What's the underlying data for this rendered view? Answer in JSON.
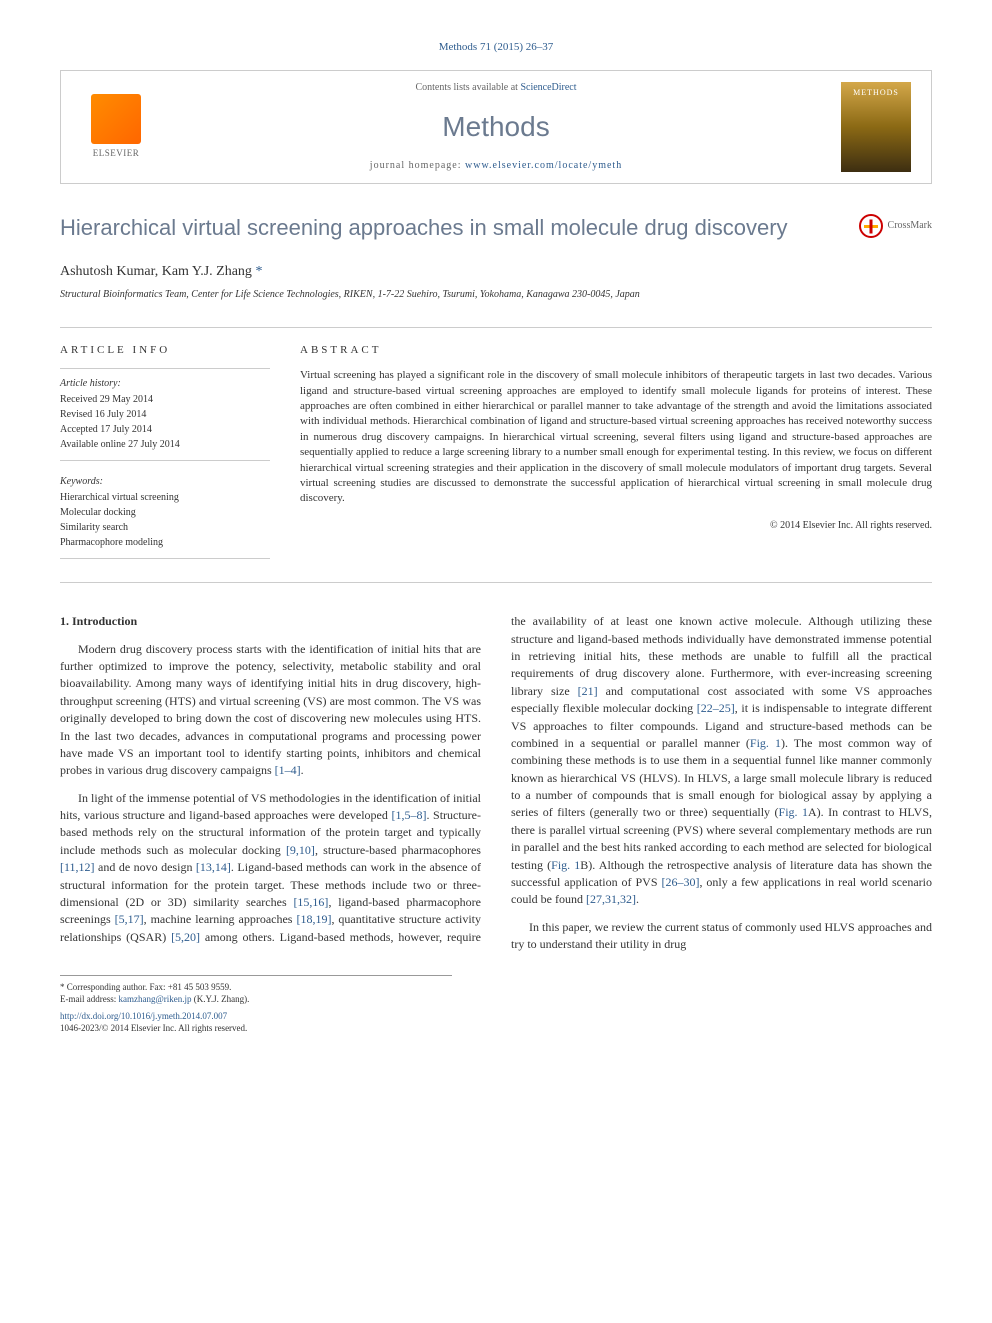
{
  "citation": "Methods 71 (2015) 26–37",
  "header": {
    "contents_prefix": "Contents lists available at ",
    "contents_link": "ScienceDirect",
    "journal": "Methods",
    "homepage_prefix": "journal homepage: ",
    "homepage_url": "www.elsevier.com/locate/ymeth",
    "publisher": "ELSEVIER",
    "cover_label": "METHODS"
  },
  "title": "Hierarchical virtual screening approaches in small molecule drug discovery",
  "crossmark": "CrossMark",
  "authors": "Ashutosh Kumar, Kam Y.J. Zhang",
  "author_mark": "*",
  "affiliation": "Structural Bioinformatics Team, Center for Life Science Technologies, RIKEN, 1-7-22 Suehiro, Tsurumi, Yokohama, Kanagawa 230-0045, Japan",
  "info": {
    "heading": "ARTICLE INFO",
    "history_label": "Article history:",
    "received": "Received 29 May 2014",
    "revised": "Revised 16 July 2014",
    "accepted": "Accepted 17 July 2014",
    "online": "Available online 27 July 2014",
    "keywords_label": "Keywords:",
    "keywords": [
      "Hierarchical virtual screening",
      "Molecular docking",
      "Similarity search",
      "Pharmacophore modeling"
    ]
  },
  "abstract": {
    "heading": "ABSTRACT",
    "text": "Virtual screening has played a significant role in the discovery of small molecule inhibitors of therapeutic targets in last two decades. Various ligand and structure-based virtual screening approaches are employed to identify small molecule ligands for proteins of interest. These approaches are often combined in either hierarchical or parallel manner to take advantage of the strength and avoid the limitations associated with individual methods. Hierarchical combination of ligand and structure-based virtual screening approaches has received noteworthy success in numerous drug discovery campaigns. In hierarchical virtual screening, several filters using ligand and structure-based approaches are sequentially applied to reduce a large screening library to a number small enough for experimental testing. In this review, we focus on different hierarchical virtual screening strategies and their application in the discovery of small molecule modulators of important drug targets. Several virtual screening studies are discussed to demonstrate the successful application of hierarchical virtual screening in small molecule drug discovery.",
    "copyright": "© 2014 Elsevier Inc. All rights reserved."
  },
  "section": {
    "heading": "1. Introduction",
    "p1": "Modern drug discovery process starts with the identification of initial hits that are further optimized to improve the potency, selectivity, metabolic stability and oral bioavailability. Among many ways of identifying initial hits in drug discovery, high-throughput screening (HTS) and virtual screening (VS) are most common. The VS was originally developed to bring down the cost of discovering new molecules using HTS. In the last two decades, advances in computational programs and processing power have made VS an important tool to identify starting points, inhibitors and chemical probes in various drug discovery campaigns ",
    "p1_ref": "[1–4]",
    "p1_end": ".",
    "p2a": "In light of the immense potential of VS methodologies in the identification of initial hits, various structure and ligand-based approaches were developed ",
    "p2_ref1": "[1,5–8]",
    "p2b": ". Structure-based methods rely on the structural information of the protein target and typically include methods such as molecular docking ",
    "p2_ref2": "[9,10]",
    "p2c": ", structure-based pharmacophores ",
    "p2_ref3": "[11,12]",
    "p2d": " and de novo design ",
    "p2_ref4": "[13,14]",
    "p2e": ". Ligand-based methods can work in the absence of structural information for the protein target. These methods include two or three-dimensional (2D or 3D) similarity searches ",
    "p2_ref5": "[15,16]",
    "p2f": ", ligand-based pharmacophore screenings ",
    "p2_ref6": "[5,17]",
    "p2g": ", machine learning approaches ",
    "p2_ref7": "[18,19]",
    "p2h": ", quantitative structure activity relationships (QSAR) ",
    "p2_ref8": "[5,20]",
    "p2i": " among others. Ligand-based methods, however, require the availability of at least one known active molecule. Although utilizing these structure and ligand-based methods individually have demonstrated immense potential in retrieving initial hits, these methods are unable to fulfill all the practical requirements of drug discovery alone. Furthermore, with ever-increasing screening library size ",
    "p2_ref9": "[21]",
    "p2j": " and computational cost associated with some VS approaches especially flexible molecular docking ",
    "p2_ref10": "[22–25]",
    "p2k": ", it is indispensable to integrate different VS approaches to filter compounds. Ligand and structure-based methods can be combined in a sequential or parallel manner (",
    "p2_fig1": "Fig. 1",
    "p2l": "). The most common way of combining these methods is to use them in a sequential funnel like manner commonly known as hierarchical VS (HLVS). In HLVS, a large small molecule library is reduced to a number of compounds that is small enough for biological assay by applying a series of filters (generally two or three) sequentially (",
    "p2_fig2": "Fig. 1",
    "p2m": "A). In contrast to HLVS, there is parallel virtual screening (PVS) where several complementary methods are run in parallel and the best hits ranked according to each method are selected for biological testing (",
    "p2_fig3": "Fig. 1",
    "p2n": "B). Although the retrospective analysis of literature data has shown the successful application of PVS ",
    "p2_ref11": "[26–30]",
    "p2o": ", only a few applications in real world scenario could be found ",
    "p2_ref12": "[27,31,32]",
    "p2p": ".",
    "p3": "In this paper, we review the current status of commonly used HLVS approaches and try to understand their utility in drug"
  },
  "footnote": {
    "corr": "* Corresponding author. Fax: +81 45 503 9559.",
    "email_label": "E-mail address: ",
    "email": "kamzhang@riken.jp",
    "email_suffix": " (K.Y.J. Zhang)."
  },
  "footer": {
    "doi": "http://dx.doi.org/10.1016/j.ymeth.2014.07.007",
    "issn": "1046-2023/© 2014 Elsevier Inc. All rights reserved."
  }
}
